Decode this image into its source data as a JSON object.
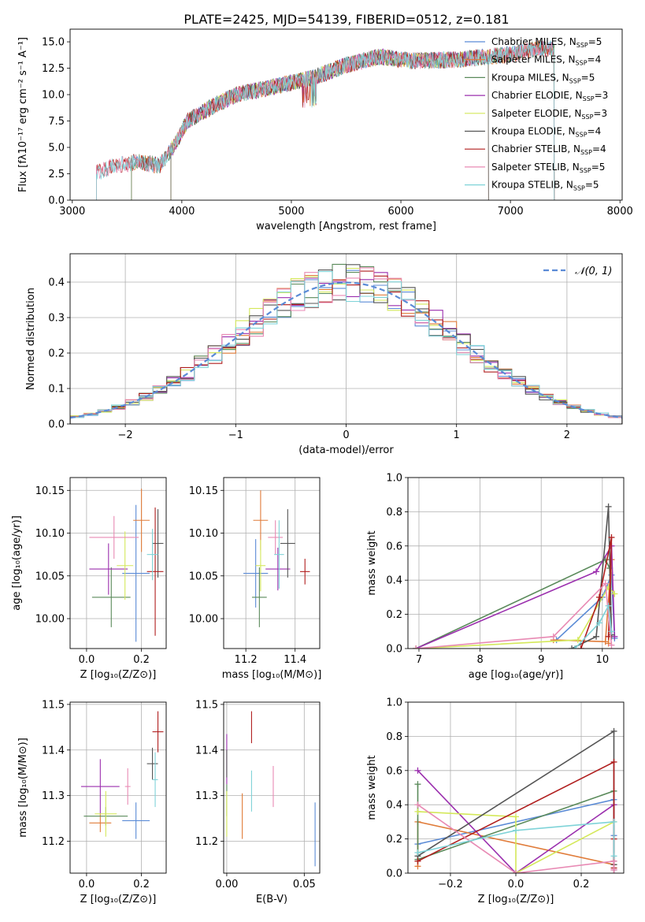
{
  "figure_title": "PLATE=2425, MJD=54139, FIBERID=0512, z=0.181",
  "colors": [
    "#5b8bd6",
    "#e07b39",
    "#5a8a5a",
    "#9b2fae",
    "#d4e85a",
    "#555555",
    "#b01e1e",
    "#e88ab4",
    "#7fd3d8"
  ],
  "chart_data": [
    {
      "id": "spectrum",
      "type": "line",
      "title": "PLATE=2425, MJD=54139, FIBERID=0512, z=0.181",
      "xlabel": "wavelength [Angstrom, rest frame]",
      "ylabel": "Flux [fλ10⁻¹⁷ erg cm⁻² s⁻¹ A⁻¹]",
      "xlim": [
        2980,
        8020
      ],
      "ylim": [
        0,
        16.2
      ],
      "xticks": [
        3000,
        4000,
        5000,
        6000,
        7000,
        8000
      ],
      "yticks": [
        0.0,
        2.5,
        5.0,
        7.5,
        10.0,
        12.5,
        15.0
      ],
      "ytick_labels": [
        "0.0",
        "2.5",
        "5.0",
        "7.5",
        "10.0",
        "12.5",
        "15.0"
      ],
      "grid": false,
      "legend_position": "top-right",
      "continuum": {
        "x": [
          3220,
          3400,
          3600,
          3800,
          3950,
          4050,
          4300,
          4500,
          4860,
          5200,
          5500,
          5800,
          6100,
          6500,
          6800,
          7000,
          7200,
          7400
        ],
        "y": [
          2.6,
          3.3,
          3.6,
          3.3,
          5.5,
          7.5,
          9.0,
          10.0,
          10.8,
          11.6,
          12.8,
          13.6,
          13.2,
          13.3,
          13.6,
          13.8,
          14.3,
          14.4
        ]
      },
      "series": [
        {
          "name": "Chabrier MILES, N",
          "sub": "SSP",
          "suffix": "=5",
          "xmin": 3540,
          "xmax": 7400
        },
        {
          "name": "Salpeter MILES, N",
          "sub": "SSP",
          "suffix": "=4",
          "xmin": 3540,
          "xmax": 7400
        },
        {
          "name": "Kroupa MILES, N",
          "sub": "SSP",
          "suffix": "=5",
          "xmin": 3540,
          "xmax": 7400
        },
        {
          "name": "Chabrier ELODIE, N",
          "sub": "SSP",
          "suffix": "=3",
          "xmin": 3900,
          "xmax": 6800
        },
        {
          "name": "Salpeter ELODIE, N",
          "sub": "SSP",
          "suffix": "=3",
          "xmin": 3900,
          "xmax": 6800
        },
        {
          "name": "Kroupa ELODIE, N",
          "sub": "SSP",
          "suffix": "=4",
          "xmin": 3900,
          "xmax": 6800
        },
        {
          "name": "Chabrier STELIB, N",
          "sub": "SSP",
          "suffix": "=4",
          "xmin": 3220,
          "xmax": 7400
        },
        {
          "name": "Salpeter STELIB, N",
          "sub": "SSP",
          "suffix": "=5",
          "xmin": 3220,
          "xmax": 7400
        },
        {
          "name": "Kroupa STELIB, N",
          "sub": "SSP",
          "suffix": "=5",
          "xmin": 3220,
          "xmax": 7400
        }
      ]
    },
    {
      "id": "residuals",
      "type": "line",
      "xlabel": "(data-model)/error",
      "ylabel": "Normed distribution",
      "xlim": [
        -2.5,
        2.5
      ],
      "ylim": [
        0,
        0.48
      ],
      "xticks": [
        -2,
        -1,
        0,
        1,
        2
      ],
      "xtick_labels": [
        "−2",
        "−1",
        "0",
        "1",
        "2"
      ],
      "yticks": [
        0.0,
        0.1,
        0.2,
        0.3,
        0.4
      ],
      "ytick_labels": [
        "0.0",
        "0.1",
        "0.2",
        "0.3",
        "0.4"
      ],
      "grid": true,
      "legend_position": "top-right",
      "gaussian_label": "𝒩(0, 1)",
      "bins": 40,
      "series_count": 9
    },
    {
      "id": "age_vs_Z",
      "type": "scatter",
      "xlabel": "Z [log₁₀(Z/Z⊙)]",
      "ylabel": "age  [log₁₀(age/yr)]",
      "xlim": [
        -0.06,
        0.29
      ],
      "ylim": [
        9.965,
        10.165
      ],
      "xticks": [
        0.0,
        0.2
      ],
      "xtick_labels": [
        "0.0",
        "0.2"
      ],
      "yticks": [
        10.0,
        10.05,
        10.1,
        10.15
      ],
      "ytick_labels": [
        "10.00",
        "10.05",
        "10.10",
        "10.15"
      ],
      "grid": true,
      "points": [
        {
          "x": 0.18,
          "y": 10.053,
          "xerr": 0.05,
          "yerr": 0.08
        },
        {
          "x": 0.2,
          "y": 10.115,
          "xerr": 0.03,
          "yerr": 0.037
        },
        {
          "x": 0.09,
          "y": 10.025,
          "xerr": 0.07,
          "yerr": 0.035
        },
        {
          "x": 0.08,
          "y": 10.058,
          "xerr": 0.07,
          "yerr": 0.03
        },
        {
          "x": 0.14,
          "y": 10.062,
          "xerr": 0.03,
          "yerr": 0.04
        },
        {
          "x": 0.26,
          "y": 10.088,
          "xerr": 0.02,
          "yerr": 0.04
        },
        {
          "x": 0.25,
          "y": 10.055,
          "xerr": 0.03,
          "yerr": 0.075
        },
        {
          "x": 0.1,
          "y": 10.095,
          "xerr": 0.09,
          "yerr": 0.025
        },
        {
          "x": 0.24,
          "y": 10.075,
          "xerr": 0.02,
          "yerr": 0.03
        }
      ]
    },
    {
      "id": "age_vs_mass",
      "type": "scatter",
      "xlabel": "mass [log₁₀(M/M⊙)]",
      "xlim": [
        11.11,
        11.5
      ],
      "ylim": [
        9.965,
        10.165
      ],
      "xticks": [
        11.2,
        11.4
      ],
      "xtick_labels": [
        "11.2",
        "11.4"
      ],
      "yticks": [
        10.0,
        10.05,
        10.1,
        10.15
      ],
      "ytick_labels": [
        "10.00",
        "10.05",
        "10.10",
        "10.15"
      ],
      "grid": true,
      "points": [
        {
          "x": 11.24,
          "y": 10.053,
          "xerr": 0.05,
          "yerr": 0.04
        },
        {
          "x": 11.26,
          "y": 10.115,
          "xerr": 0.03,
          "yerr": 0.035
        },
        {
          "x": 11.255,
          "y": 10.025,
          "xerr": 0.03,
          "yerr": 0.035
        },
        {
          "x": 11.33,
          "y": 10.058,
          "xerr": 0.05,
          "yerr": 0.025
        },
        {
          "x": 11.26,
          "y": 10.062,
          "xerr": 0.02,
          "yerr": 0.03
        },
        {
          "x": 11.37,
          "y": 10.088,
          "xerr": 0.03,
          "yerr": 0.04
        },
        {
          "x": 11.44,
          "y": 10.055,
          "xerr": 0.02,
          "yerr": 0.015
        },
        {
          "x": 11.32,
          "y": 10.095,
          "xerr": 0.03,
          "yerr": 0.02
        },
        {
          "x": 11.335,
          "y": 10.075,
          "xerr": 0.02,
          "yerr": 0.04
        }
      ]
    },
    {
      "id": "weight_vs_age",
      "type": "line",
      "xlabel": "age  [log₁₀(age/yr)]",
      "ylabel": "mass weight",
      "xlim": [
        6.82,
        10.35
      ],
      "ylim": [
        0,
        1.0
      ],
      "xticks": [
        7,
        8,
        9,
        10
      ],
      "yticks": [
        0.0,
        0.2,
        0.4,
        0.6,
        0.8,
        1.0
      ],
      "ytick_labels": [
        "0.0",
        "0.2",
        "0.4",
        "0.6",
        "0.8",
        "1.0"
      ],
      "grid": true,
      "series": [
        {
          "x": [
            9.25,
            10.0,
            10.15,
            10.2
          ],
          "y": [
            0.05,
            0.3,
            0.43,
            0.06
          ]
        },
        {
          "x": [
            9.2,
            10.05,
            10.15,
            10.1
          ],
          "y": [
            0.05,
            0.04,
            0.52,
            0.03
          ]
        },
        {
          "x": [
            6.95,
            10.05,
            10.12,
            10.15
          ],
          "y": [
            0.0,
            0.52,
            0.47,
            0.07
          ]
        },
        {
          "x": [
            6.95,
            9.9,
            10.15,
            10.2
          ],
          "y": [
            0.0,
            0.45,
            0.6,
            0.07
          ]
        },
        {
          "x": [
            6.95,
            9.6,
            10.1,
            10.2
          ],
          "y": [
            0.0,
            0.05,
            0.36,
            0.32
          ]
        },
        {
          "x": [
            9.5,
            9.9,
            10.1,
            10.15
          ],
          "y": [
            0.0,
            0.07,
            0.83,
            0.08
          ]
        },
        {
          "x": [
            9.65,
            9.95,
            10.15,
            10.1
          ],
          "y": [
            0.0,
            0.3,
            0.65,
            0.07
          ]
        },
        {
          "x": [
            6.95,
            9.2,
            10.05,
            10.15
          ],
          "y": [
            0.0,
            0.07,
            0.38,
            0.02
          ]
        },
        {
          "x": [
            9.55,
            9.95,
            10.1,
            10.15
          ],
          "y": [
            0.0,
            0.15,
            0.25,
            0.1
          ]
        }
      ]
    },
    {
      "id": "mass_vs_Z",
      "type": "scatter",
      "xlabel": "Z [log₁₀(Z/Z⊙)]",
      "ylabel": "mass [log₁₀(M/M⊙)]",
      "xlim": [
        -0.06,
        0.29
      ],
      "ylim": [
        11.13,
        11.505
      ],
      "xticks": [
        0.0,
        0.2
      ],
      "xtick_labels": [
        "0.0",
        "0.2"
      ],
      "yticks": [
        11.2,
        11.3,
        11.4,
        11.5
      ],
      "ytick_labels": [
        "11.2",
        "11.3",
        "11.4",
        "11.5"
      ],
      "grid": true,
      "points": [
        {
          "x": 0.18,
          "y": 11.245,
          "xerr": 0.05,
          "yerr": 0.04
        },
        {
          "x": 0.05,
          "y": 11.24,
          "xerr": 0.04,
          "yerr": 0.02
        },
        {
          "x": 0.07,
          "y": 11.255,
          "xerr": 0.08,
          "yerr": 0.02
        },
        {
          "x": 0.05,
          "y": 11.32,
          "xerr": 0.07,
          "yerr": 0.06
        },
        {
          "x": 0.07,
          "y": 11.26,
          "xerr": 0.04,
          "yerr": 0.05
        },
        {
          "x": 0.24,
          "y": 11.37,
          "xerr": 0.02,
          "yerr": 0.035
        },
        {
          "x": 0.26,
          "y": 11.44,
          "xerr": 0.02,
          "yerr": 0.045
        },
        {
          "x": 0.15,
          "y": 11.32,
          "xerr": 0.01,
          "yerr": 0.04
        },
        {
          "x": 0.25,
          "y": 11.335,
          "xerr": 0.01,
          "yerr": 0.06
        }
      ]
    },
    {
      "id": "mass_vs_ebv",
      "type": "scatter",
      "xlabel": "E(B-V)",
      "xlim": [
        -0.002,
        0.06
      ],
      "ylim": [
        11.13,
        11.505
      ],
      "xticks": [
        0.0,
        0.05
      ],
      "xtick_labels": [
        "0.00",
        "0.05"
      ],
      "yticks": [
        11.2,
        11.3,
        11.4,
        11.5
      ],
      "ytick_labels": [
        "11.2",
        "11.3",
        "11.4",
        "11.5"
      ],
      "grid": true,
      "points": [
        {
          "x": 0.057,
          "y": 11.215,
          "xerr": 0.0,
          "yerr": 0.07
        },
        {
          "x": 0.01,
          "y": 11.255,
          "xerr": 0.0,
          "yerr": 0.05
        },
        {
          "x": 0.0,
          "y": 11.29,
          "xerr": 0.0,
          "yerr": 0.035
        },
        {
          "x": 0.0,
          "y": 11.38,
          "xerr": 0.0,
          "yerr": 0.055
        },
        {
          "x": 0.0,
          "y": 11.26,
          "xerr": 0.0,
          "yerr": 0.05
        },
        {
          "x": 0.0,
          "y": 11.37,
          "xerr": 0.0,
          "yerr": 0.03
        },
        {
          "x": 0.016,
          "y": 11.45,
          "xerr": 0.0,
          "yerr": 0.035
        },
        {
          "x": 0.03,
          "y": 11.32,
          "xerr": 0.0,
          "yerr": 0.045
        },
        {
          "x": 0.016,
          "y": 11.31,
          "xerr": 0.0,
          "yerr": 0.045
        }
      ]
    },
    {
      "id": "weight_vs_Z",
      "type": "line",
      "xlabel": "Z [log₁₀(Z/Z⊙)]",
      "ylabel": "mass weight",
      "xlim": [
        -0.33,
        0.33
      ],
      "ylim": [
        0,
        1.0
      ],
      "xticks": [
        -0.2,
        0.0,
        0.2
      ],
      "xtick_labels": [
        "−0.2",
        "0.0",
        "0.2"
      ],
      "yticks": [
        0.0,
        0.2,
        0.4,
        0.6,
        0.8,
        1.0
      ],
      "ytick_labels": [
        "0.0",
        "0.2",
        "0.4",
        "0.6",
        "0.8",
        "1.0"
      ],
      "grid": true,
      "series": [
        {
          "x": [
            -0.3,
            0.3,
            0.3,
            0.3
          ],
          "y": [
            0.17,
            0.43,
            0.05,
            0.22
          ]
        },
        {
          "x": [
            -0.3,
            -0.3,
            0.3,
            0.3
          ],
          "y": [
            0.04,
            0.3,
            0.05,
            0.02
          ]
        },
        {
          "x": [
            -0.3,
            -0.3,
            0.3,
            0.3
          ],
          "y": [
            0.52,
            0.08,
            0.48,
            0.02
          ]
        },
        {
          "x": [
            -0.3,
            0.0,
            0.3,
            0.3
          ],
          "y": [
            0.6,
            0.0,
            0.4,
            0.02
          ]
        },
        {
          "x": [
            -0.3,
            0.0,
            0.0,
            0.3
          ],
          "y": [
            0.36,
            0.33,
            0.0,
            0.3
          ]
        },
        {
          "x": [
            -0.3,
            0.3,
            0.3,
            0.3
          ],
          "y": [
            0.1,
            0.83,
            0.07,
            0.05
          ]
        },
        {
          "x": [
            -0.3,
            0.3,
            0.3,
            0.3
          ],
          "y": [
            0.07,
            0.65,
            0.2,
            0.03
          ]
        },
        {
          "x": [
            -0.3,
            0.0,
            0.3,
            0.3
          ],
          "y": [
            0.4,
            0.0,
            0.07,
            0.02
          ]
        },
        {
          "x": [
            -0.3,
            0.0,
            0.3,
            0.3
          ],
          "y": [
            0.12,
            0.25,
            0.3,
            0.1
          ]
        }
      ]
    }
  ]
}
